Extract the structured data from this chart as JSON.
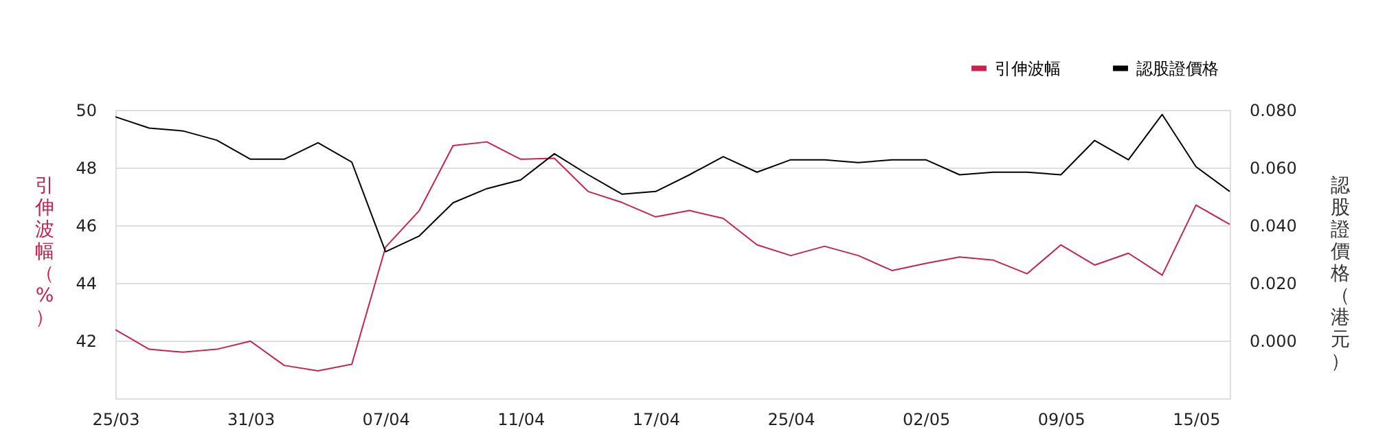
{
  "chart_data": {
    "type": "line",
    "categories": [
      "25/03",
      null,
      null,
      null,
      "31/03",
      null,
      null,
      null,
      "07/04",
      null,
      null,
      null,
      "11/04",
      null,
      null,
      null,
      "17/04",
      null,
      null,
      null,
      "25/04",
      null,
      null,
      null,
      "02/05",
      null,
      null,
      null,
      "09/05",
      null,
      null,
      null,
      "15/05",
      null
    ],
    "series": [
      {
        "name": "引伸波幅",
        "color": "#c8224f",
        "values": [
          42.38,
          41.7,
          41.6,
          41.7,
          41.98,
          41.14,
          40.95,
          41.18,
          45.24,
          46.51,
          48.76,
          48.89,
          48.29,
          48.32,
          47.17,
          46.79,
          46.29,
          46.51,
          46.24,
          45.32,
          44.95,
          45.27,
          44.95,
          44.43,
          44.68,
          44.9,
          44.79,
          44.32,
          45.32,
          44.62,
          45.03,
          44.27,
          46.7,
          46.03
        ]
      },
      {
        "name": "認股證價格",
        "color": "#000000",
        "axis": "y2",
        "values": [
          0.0776,
          0.0737,
          0.0727,
          0.0695,
          0.0629,
          0.0629,
          0.0686,
          0.0619,
          0.0308,
          0.0363,
          0.0478,
          0.0527,
          0.0557,
          0.0648,
          0.0575,
          0.0508,
          0.0517,
          0.0575,
          0.0638,
          0.0584,
          0.0627,
          0.0627,
          0.0617,
          0.0627,
          0.0627,
          0.0575,
          0.0584,
          0.0584,
          0.0575,
          0.0694,
          0.0627,
          0.0784,
          0.0603,
          0.0517
        ]
      }
    ],
    "ylabel": "引伸波幅（%）",
    "y2label": "認股證價格（港元）",
    "ylim": [
      40,
      50
    ],
    "yticks": [
      42,
      44,
      46,
      48,
      50
    ],
    "y2lim": [
      -0.02,
      0.08
    ],
    "y2ticks": [
      {
        "value": 0,
        "label": "0.000"
      },
      {
        "value": 0.02,
        "label": "0.020"
      },
      {
        "value": 0.04,
        "label": "0.040"
      },
      {
        "value": 0.06,
        "label": "0.060"
      },
      {
        "value": 0.08,
        "label": "0.080"
      }
    ],
    "grid": "y",
    "legend": "top right",
    "line_style": "solid",
    "marker": "none"
  }
}
